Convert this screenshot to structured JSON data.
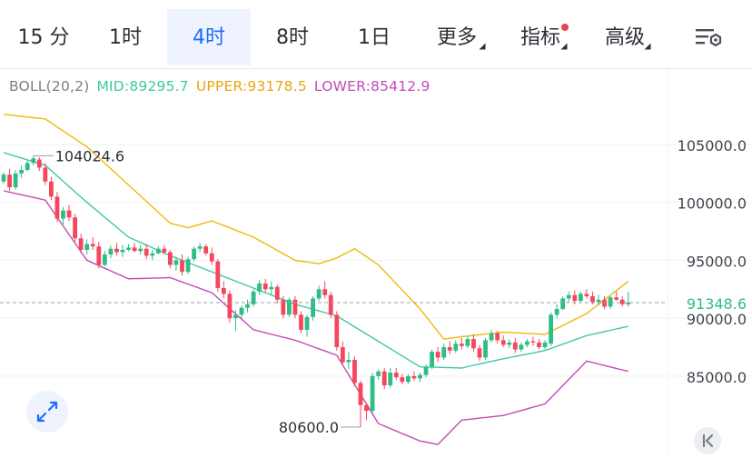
{
  "tabs": [
    {
      "label": "15 分",
      "active": false
    },
    {
      "label": "1时",
      "active": false
    },
    {
      "label": "4时",
      "active": true
    },
    {
      "label": "8时",
      "active": false
    },
    {
      "label": "1日",
      "active": false
    },
    {
      "label": "更多",
      "active": false,
      "dropdown": true
    },
    {
      "label": "指标",
      "active": false,
      "dropdown": true,
      "badge": true
    },
    {
      "label": "高级",
      "active": false,
      "dropdown": true
    }
  ],
  "settings_icon": "chart-settings-icon",
  "indicator": {
    "name": "BOLL(20,2)",
    "mid": "MID:89295.7",
    "upper": "UPPER:93178.5",
    "lower": "LOWER:85412.9"
  },
  "colors": {
    "up": "#2ebd85",
    "down": "#f6465d",
    "mid": "#3fc9a3",
    "upper": "#f0b90b",
    "lower": "#c34bb5",
    "accent": "#1f6bff"
  },
  "chart_data": {
    "type": "candlestick",
    "y_ticks": [
      "105000.0",
      "100000.0",
      "95000.0",
      "90000.0",
      "85000.0"
    ],
    "ylim": [
      78400,
      109000
    ],
    "high_label": "104024.6",
    "low_label": "80600.0",
    "last_price": "91348.6",
    "last_price_value": 91348.6,
    "candles": [
      [
        101800,
        102600,
        101600,
        102400
      ],
      [
        102400,
        102900,
        101000,
        101300
      ],
      [
        101300,
        102800,
        101100,
        102500
      ],
      [
        102500,
        103200,
        102100,
        102800
      ],
      [
        102800,
        103600,
        102700,
        103400
      ],
      [
        103400,
        104024.6,
        103200,
        103800
      ],
      [
        103700,
        103900,
        102700,
        103000
      ],
      [
        103000,
        103400,
        101500,
        101800
      ],
      [
        101800,
        102200,
        100200,
        100500
      ],
      [
        100500,
        100900,
        98300,
        98600
      ],
      [
        98600,
        99600,
        98100,
        99300
      ],
      [
        99300,
        99800,
        98400,
        98700
      ],
      [
        98700,
        99000,
        96600,
        96900
      ],
      [
        96900,
        97300,
        95600,
        95900
      ],
      [
        95900,
        96800,
        95500,
        96400
      ],
      [
        96400,
        97000,
        95900,
        96200
      ],
      [
        96200,
        96600,
        94300,
        94600
      ],
      [
        94600,
        95800,
        94500,
        95500
      ],
      [
        95500,
        96300,
        95200,
        96000
      ],
      [
        96000,
        96500,
        95400,
        95700
      ],
      [
        95700,
        96300,
        95300,
        95900
      ],
      [
        95900,
        96400,
        95800,
        96100
      ],
      [
        96100,
        96500,
        95700,
        95800
      ],
      [
        95800,
        96300,
        95500,
        96000
      ],
      [
        96000,
        96400,
        95100,
        95400
      ],
      [
        95400,
        95900,
        95000,
        95600
      ],
      [
        95600,
        96200,
        95500,
        96000
      ],
      [
        96000,
        96300,
        95500,
        95700
      ],
      [
        95700,
        95900,
        94300,
        94600
      ],
      [
        94600,
        95300,
        94100,
        95000
      ],
      [
        95000,
        95500,
        93700,
        94000
      ],
      [
        94000,
        95300,
        93800,
        95100
      ],
      [
        95100,
        96200,
        94900,
        96000
      ],
      [
        96000,
        96500,
        95700,
        96200
      ],
      [
        96200,
        96400,
        95400,
        95600
      ],
      [
        95600,
        96100,
        94600,
        94900
      ],
      [
        94900,
        95100,
        92300,
        92600
      ],
      [
        92600,
        93200,
        91700,
        92100
      ],
      [
        92100,
        92400,
        89600,
        90000
      ],
      [
        90000,
        90700,
        88900,
        90300
      ],
      [
        90300,
        91100,
        90000,
        90900
      ],
      [
        90900,
        91600,
        90500,
        91200
      ],
      [
        91200,
        92500,
        91000,
        92300
      ],
      [
        92300,
        93300,
        92000,
        93000
      ],
      [
        93000,
        93400,
        92200,
        92500
      ],
      [
        92500,
        93200,
        92000,
        92700
      ],
      [
        92700,
        92900,
        91300,
        91600
      ],
      [
        91600,
        91900,
        90000,
        90300
      ],
      [
        90300,
        91800,
        90100,
        91600
      ],
      [
        91600,
        91900,
        90000,
        90300
      ],
      [
        90300,
        90600,
        88700,
        89000
      ],
      [
        89000,
        90300,
        88400,
        90100
      ],
      [
        90100,
        91900,
        89800,
        91700
      ],
      [
        91700,
        92800,
        91500,
        92500
      ],
      [
        92500,
        93200,
        91700,
        92000
      ],
      [
        92000,
        92300,
        90000,
        90300
      ],
      [
        90300,
        90600,
        87200,
        87500
      ],
      [
        87500,
        88000,
        85900,
        86200
      ],
      [
        86200,
        87100,
        85600,
        86400
      ],
      [
        86400,
        86700,
        84100,
        84400
      ],
      [
        84400,
        84600,
        80600,
        82500
      ],
      [
        82500,
        82700,
        81200,
        82000
      ],
      [
        82000,
        85300,
        81800,
        85000
      ],
      [
        85000,
        85600,
        84700,
        85400
      ],
      [
        85400,
        85700,
        83900,
        84200
      ],
      [
        84200,
        85700,
        84000,
        85300
      ],
      [
        85300,
        85700,
        84700,
        84900
      ],
      [
        84900,
        85200,
        84300,
        84500
      ],
      [
        84500,
        85200,
        84300,
        85000
      ],
      [
        85000,
        85400,
        84600,
        84800
      ],
      [
        84800,
        85300,
        84500,
        85100
      ],
      [
        85100,
        86000,
        84900,
        85800
      ],
      [
        85800,
        87300,
        85600,
        87100
      ],
      [
        87100,
        87500,
        86200,
        86600
      ],
      [
        86600,
        87800,
        86400,
        87500
      ],
      [
        87500,
        88000,
        86900,
        87200
      ],
      [
        87200,
        88100,
        87000,
        87800
      ],
      [
        87800,
        88300,
        87300,
        87600
      ],
      [
        87600,
        88500,
        87400,
        88200
      ],
      [
        88200,
        88600,
        87100,
        87400
      ],
      [
        87400,
        87700,
        86300,
        86600
      ],
      [
        86600,
        88300,
        86400,
        88100
      ],
      [
        88100,
        89000,
        87900,
        88700
      ],
      [
        88700,
        88900,
        87800,
        88100
      ],
      [
        88100,
        88500,
        87500,
        87700
      ],
      [
        87700,
        88200,
        87400,
        87900
      ],
      [
        87900,
        88300,
        87000,
        87300
      ],
      [
        87300,
        87900,
        87100,
        87700
      ],
      [
        87700,
        88200,
        87500,
        88000
      ],
      [
        88000,
        88400,
        87600,
        87900
      ],
      [
        87900,
        88200,
        87300,
        87500
      ],
      [
        87500,
        88100,
        87300,
        87900
      ],
      [
        87800,
        90500,
        87600,
        90300
      ],
      [
        90300,
        91200,
        90000,
        90800
      ],
      [
        90800,
        91900,
        90700,
        91700
      ],
      [
        91700,
        92300,
        91400,
        92000
      ],
      [
        92000,
        92400,
        91200,
        91500
      ],
      [
        91500,
        92300,
        91400,
        92100
      ],
      [
        92100,
        92500,
        91700,
        91900
      ],
      [
        91900,
        92300,
        91200,
        91400
      ],
      [
        91400,
        92000,
        91100,
        91600
      ],
      [
        91600,
        91900,
        90800,
        91000
      ],
      [
        91000,
        91900,
        90800,
        91800
      ],
      [
        91800,
        92300,
        91500,
        91600
      ],
      [
        91600,
        91900,
        91000,
        91200
      ],
      [
        91200,
        92300,
        91000,
        91348.6
      ]
    ],
    "mid": [
      [
        0,
        104300
      ],
      [
        7,
        103200
      ],
      [
        14,
        100000
      ],
      [
        21,
        97000
      ],
      [
        28,
        95400
      ],
      [
        35,
        94000
      ],
      [
        42,
        92600
      ],
      [
        49,
        91200
      ],
      [
        56,
        90200
      ],
      [
        63,
        88000
      ],
      [
        70,
        85800
      ],
      [
        77,
        85700
      ],
      [
        84,
        86500
      ],
      [
        91,
        87200
      ],
      [
        98,
        88500
      ],
      [
        105,
        89295.7
      ]
    ],
    "upper": [
      [
        0,
        107600
      ],
      [
        7,
        107200
      ],
      [
        14,
        104800
      ],
      [
        21,
        101500
      ],
      [
        28,
        98200
      ],
      [
        31,
        97800
      ],
      [
        35,
        98400
      ],
      [
        42,
        97000
      ],
      [
        49,
        95000
      ],
      [
        53,
        94700
      ],
      [
        56,
        95200
      ],
      [
        59,
        96000
      ],
      [
        63,
        94600
      ],
      [
        70,
        90800
      ],
      [
        74,
        88200
      ],
      [
        77,
        88400
      ],
      [
        84,
        88800
      ],
      [
        91,
        88600
      ],
      [
        98,
        90400
      ],
      [
        105,
        93178.5
      ]
    ],
    "lower": [
      [
        0,
        101000
      ],
      [
        7,
        100200
      ],
      [
        14,
        95000
      ],
      [
        21,
        93400
      ],
      [
        28,
        93500
      ],
      [
        35,
        92200
      ],
      [
        42,
        89000
      ],
      [
        49,
        88100
      ],
      [
        56,
        86800
      ],
      [
        63,
        80900
      ],
      [
        70,
        79400
      ],
      [
        73,
        79100
      ],
      [
        77,
        81200
      ],
      [
        84,
        81600
      ],
      [
        91,
        82600
      ],
      [
        98,
        86300
      ],
      [
        105,
        85412.9
      ]
    ]
  }
}
